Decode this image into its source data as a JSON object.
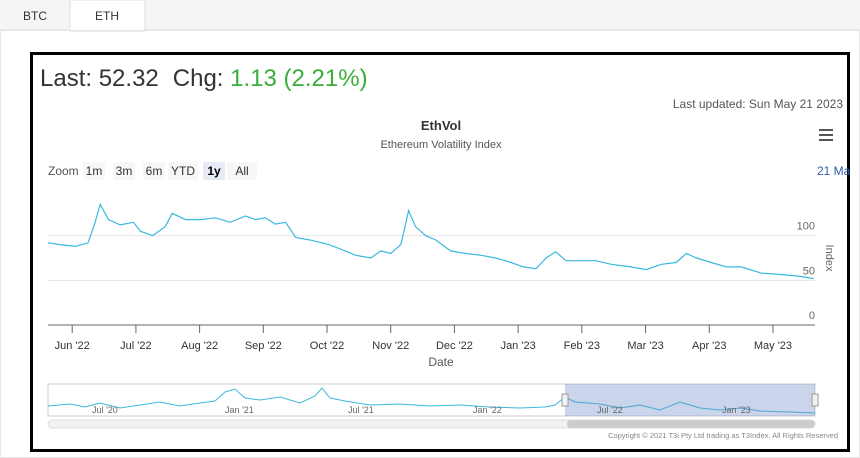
{
  "tabs": [
    "BTC",
    "ETH"
  ],
  "quote": {
    "last_label": "Last:",
    "last": "52.32",
    "chg_label": "Chg:",
    "chg": "1.13",
    "chg_pct": "(2.21%)"
  },
  "updated": "Last updated: Sun May 21 2023",
  "chart_data": {
    "type": "line",
    "title": "EthVol",
    "subtitle": "Ethereum Volatility Index",
    "zoom_label": "Zoom",
    "zoom_buttons": [
      "1m",
      "3m",
      "6m",
      "YTD",
      "1y",
      "All"
    ],
    "selected_zoom": "1y",
    "range_label": "21 Ma",
    "x_label": "Date",
    "y_label": "Index",
    "color": "#3bb8e0",
    "grid": true,
    "x": [
      -0.38,
      -0.19,
      0.05,
      0.25,
      0.36,
      0.44,
      0.57,
      0.75,
      0.96,
      1.07,
      1.26,
      1.46,
      1.57,
      1.78,
      2.01,
      2.25,
      2.48,
      2.72,
      2.88,
      3.03,
      3.19,
      3.35,
      3.51,
      3.74,
      4.03,
      4.21,
      4.45,
      4.69,
      4.84,
      5.0,
      5.16,
      5.28,
      5.39,
      5.55,
      5.71,
      5.94,
      6.18,
      6.42,
      6.65,
      6.89,
      7.08,
      7.28,
      7.44,
      7.59,
      7.75,
      7.99,
      8.22,
      8.46,
      8.77,
      9.01,
      9.25,
      9.48,
      9.64,
      9.8,
      10.03,
      10.27,
      10.5,
      10.82,
      11.05,
      11.37,
      11.64
    ],
    "values": [
      92,
      90,
      88,
      92,
      115,
      135,
      118,
      112,
      115,
      105,
      100,
      110,
      125,
      118,
      118,
      120,
      115,
      122,
      118,
      120,
      113,
      115,
      98,
      95,
      90,
      85,
      78,
      75,
      83,
      80,
      90,
      128,
      110,
      100,
      95,
      83,
      80,
      78,
      75,
      70,
      65,
      63,
      75,
      82,
      72,
      72,
      72,
      68,
      65,
      62,
      68,
      70,
      80,
      75,
      70,
      65,
      65,
      58,
      57,
      55,
      52
    ],
    "xlim": [
      -0.38,
      11.66
    ],
    "xticks": [
      {
        "value": 0,
        "label": "Jun '22"
      },
      {
        "value": 1,
        "label": "Jul '22"
      },
      {
        "value": 2,
        "label": "Aug '22"
      },
      {
        "value": 3,
        "label": "Sep '22"
      },
      {
        "value": 4,
        "label": "Oct '22"
      },
      {
        "value": 5,
        "label": "Nov '22"
      },
      {
        "value": 6,
        "label": "Dec '22"
      },
      {
        "value": 7,
        "label": "Jan '23"
      },
      {
        "value": 8,
        "label": "Feb '23"
      },
      {
        "value": 9,
        "label": "Mar '23"
      },
      {
        "value": 10,
        "label": "Apr '23"
      },
      {
        "value": 11,
        "label": "May '23"
      }
    ],
    "ylim": [
      0,
      150
    ],
    "yticks": [
      0,
      50,
      100
    ],
    "navigator_labels": [
      "Jul '20",
      "Jan '21",
      "Jul '21",
      "Jan '22",
      "Jul '22",
      "Jan '23"
    ]
  },
  "copyright": "Copyright © 2021 T3i Pty Ltd trading as T3Index. All Rights Reserved"
}
